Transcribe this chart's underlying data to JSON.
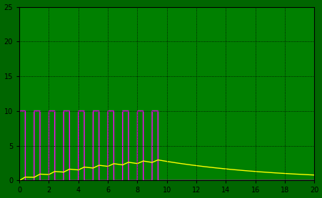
{
  "background_color": "#008000",
  "figure_bg": "#006600",
  "xlim": [
    0,
    20
  ],
  "ylim": [
    0,
    25
  ],
  "xticks": [
    0,
    2,
    4,
    6,
    8,
    10,
    12,
    14,
    16,
    18,
    20
  ],
  "yticks": [
    0,
    5,
    10,
    15,
    20,
    25
  ],
  "grid_color": "#000000",
  "pulse_color": "#ff00ff",
  "rc_color": "#ffff00",
  "pulse_amplitude": 10,
  "total_time": 20,
  "dt": 0.0005,
  "pulse_period": 1.0,
  "num_pulses": 10,
  "duty_cycles": [
    0.4,
    0.4,
    0.4,
    0.4,
    0.4,
    0.4,
    0.4,
    0.4,
    0.4,
    0.4
  ],
  "tau": 8.0,
  "linewidth_pulse": 1.0,
  "linewidth_rc": 1.0,
  "tick_labelsize": 7
}
